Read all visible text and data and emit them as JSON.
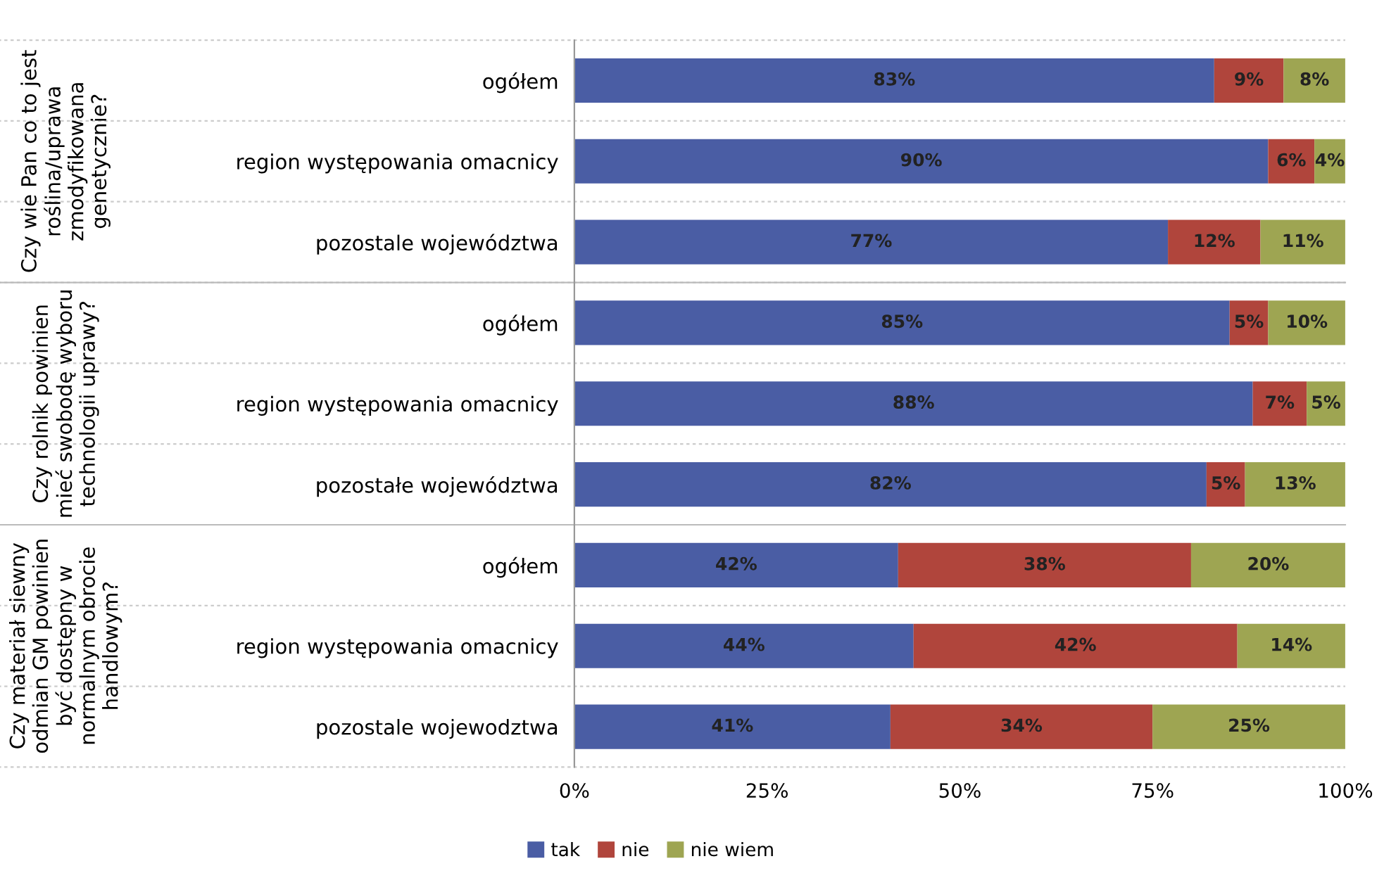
{
  "chart_data": {
    "type": "bar",
    "orientation": "horizontal",
    "stacked": true,
    "categories": [
      "ogółem",
      "region występowania omacnicy",
      "pozostale województwa",
      "ogółem",
      "region występowania omacnicy",
      "pozostałe województwa",
      "ogółem",
      "region występowania omacnicy",
      "pozostale wojewodztwa"
    ],
    "series": [
      {
        "name": "tak",
        "color": "#4a5da4",
        "values": [
          83,
          90,
          77,
          85,
          88,
          82,
          42,
          44,
          41
        ],
        "value_labels": [
          "83%",
          "90%",
          "77%",
          "85%",
          "88%",
          "82%",
          "42%",
          "44%",
          "41%"
        ]
      },
      {
        "name": "nie",
        "color": "#b0453c",
        "values": [
          9,
          6,
          12,
          5,
          7,
          5,
          38,
          42,
          34
        ],
        "value_labels": [
          "9%",
          "6%",
          "12%",
          "5%",
          "7%",
          "5%",
          "38%",
          "42%",
          "34%"
        ]
      },
      {
        "name": "nie wiem",
        "color": "#9ea552",
        "values": [
          8,
          4,
          11,
          10,
          5,
          13,
          20,
          14,
          25
        ],
        "value_labels": [
          "8%",
          "4%",
          "11%",
          "10%",
          "5%",
          "13%",
          "20%",
          "14%",
          "25%"
        ]
      }
    ],
    "xlim": [
      0,
      100
    ],
    "xticks": [
      {
        "value": 0,
        "label": "0%"
      },
      {
        "value": 25,
        "label": "25%"
      },
      {
        "value": 50,
        "label": "50%"
      },
      {
        "value": 75,
        "label": "75%"
      },
      {
        "value": 100,
        "label": "100%"
      }
    ],
    "grid": false,
    "legend": "bottom",
    "annotations": [
      "Czy wie Pan co to jest\nroślina/uprawa\nzmodyfikowana\ngenetycznie?",
      "Czy rolnik powinien\nmieć swobodę wyboru\ntechnologii uprawy?",
      "Czy materiał siewny\nodmian GM powinien\nbyć dostępny w\nnormalnym obrocie\nhandlowym?"
    ]
  }
}
